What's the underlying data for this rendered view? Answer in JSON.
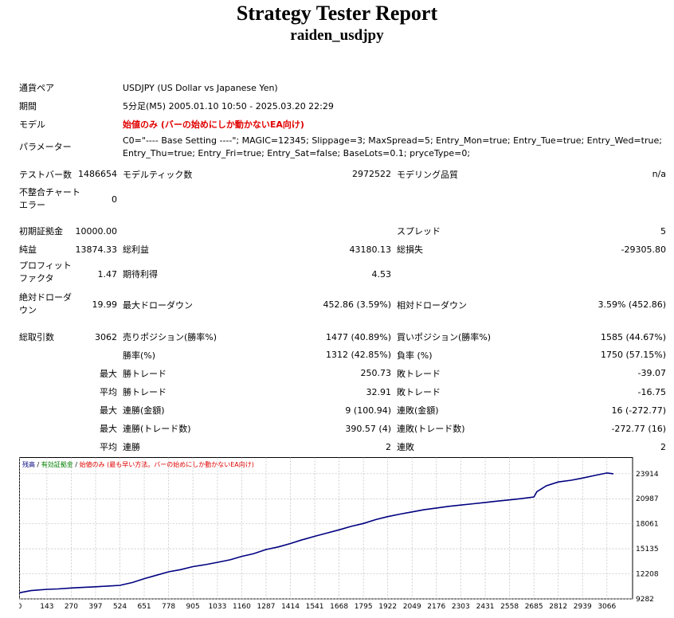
{
  "header": {
    "title": "Strategy Tester Report",
    "subtitle": "raiden_usdjpy"
  },
  "info": {
    "symbol_label": "通貨ペア",
    "symbol": "USDJPY (US Dollar vs Japanese Yen)",
    "period_label": "期間",
    "period": "5分足(M5) 2005.01.10 10:50 - 2025.03.20 22:29",
    "model_label": "モデル",
    "model": "始値のみ (バーの始めにしか動かないEA向け)",
    "params_label": "パラメーター",
    "params": "C0=\"---- Base Setting ----\"; MAGIC=12345; Slippage=3; MaxSpread=5; Entry_Mon=true; Entry_Tue=true; Entry_Wed=true; Entry_Thu=true; Entry_Fri=true; Entry_Sat=false; BaseLots=0.1; pryceType=0;"
  },
  "stats": {
    "bars_label": "テストバー数",
    "bars": "1486654",
    "ticks_label": "モデルティック数",
    "ticks": "2972522",
    "quality_label": "モデリング品質",
    "quality": "n/a",
    "mismatch_label": "不整合チャートエラー",
    "mismatch": "0",
    "deposit_label": "初期証拠金",
    "deposit": "10000.00",
    "spread_label": "スプレッド",
    "spread": "5",
    "net_label": "純益",
    "net": "13874.33",
    "gross_profit_label": "総利益",
    "gross_profit": "43180.13",
    "gross_loss_label": "総損失",
    "gross_loss": "-29305.80",
    "pf_label": "プロフィットファクタ",
    "pf": "1.47",
    "expected_label": "期待利得",
    "expected": "4.53",
    "abs_dd_label": "絶対ドローダウン",
    "abs_dd": "19.99",
    "max_dd_label": "最大ドローダウン",
    "max_dd": "452.86 (3.59%)",
    "rel_dd_label": "相対ドローダウン",
    "rel_dd": "3.59% (452.86)",
    "trades_label": "総取引数",
    "trades": "3062",
    "short_label": "売りポジション(勝率%)",
    "short": "1477 (40.89%)",
    "long_label": "買いポジション(勝率%)",
    "long": "1585 (44.67%)",
    "winpct_label": "勝率(%)",
    "winpct": "1312 (42.85%)",
    "losspct_label": "負率 (%)",
    "losspct": "1750 (57.15%)",
    "max_label": "最大",
    "avg_label": "平均",
    "win_trade_label": "勝トレード",
    "loss_trade_label": "敗トレード",
    "max_win": "250.73",
    "max_loss": "-39.07",
    "avg_win": "32.91",
    "avg_loss": "-16.75",
    "cons_win_amt_label": "連勝(金額)",
    "cons_win_amt": "9 (100.94)",
    "cons_loss_amt_label": "連敗(金額)",
    "cons_loss_amt": "16 (-272.77)",
    "cons_win_tr_label": "連勝(トレード数)",
    "cons_win_tr": "390.57 (4)",
    "cons_loss_tr_label": "連敗(トレード数)",
    "cons_loss_tr": "-272.77 (16)",
    "avg_cons_win_label": "連勝",
    "avg_cons_win": "2",
    "avg_cons_loss_label": "連敗",
    "avg_cons_loss": "2"
  },
  "chart_data": {
    "type": "line",
    "legend": [
      {
        "text": "残高",
        "color": "#000080"
      },
      {
        "text": " / ",
        "color": "#000000"
      },
      {
        "text": "有効証拠金",
        "color": "#008000"
      },
      {
        "text": " / ",
        "color": "#000000"
      },
      {
        "text": "始値のみ (最も早い方法。バーの始めにしか動かないEA向け)",
        "color": "#e00000"
      }
    ],
    "x_ticks": [
      0,
      143,
      270,
      397,
      524,
      651,
      778,
      905,
      1033,
      1160,
      1287,
      1414,
      1541,
      1668,
      1795,
      1922,
      2049,
      2176,
      2303,
      2431,
      2558,
      2685,
      2812,
      2939,
      3066
    ],
    "y_ticks": [
      23914,
      20987,
      18061,
      15135,
      12208,
      9282
    ],
    "xlim": [
      0,
      3200
    ],
    "ylim": [
      9282,
      24500
    ],
    "series": [
      {
        "color": "#000080",
        "x": [
          0,
          60,
          143,
          200,
          270,
          330,
          397,
          460,
          524,
          590,
          651,
          700,
          778,
          840,
          905,
          970,
          1033,
          1100,
          1160,
          1220,
          1287,
          1350,
          1414,
          1470,
          1541,
          1600,
          1668,
          1730,
          1795,
          1860,
          1922,
          1990,
          2049,
          2110,
          2176,
          2240,
          2303,
          2370,
          2431,
          2490,
          2558,
          2620,
          2685,
          2700,
          2750,
          2812,
          2880,
          2939,
          3000,
          3066,
          3100
        ],
        "y": [
          10000,
          10250,
          10400,
          10450,
          10560,
          10620,
          10700,
          10780,
          10860,
          11200,
          11650,
          11950,
          12450,
          12700,
          13050,
          13280,
          13550,
          13850,
          14250,
          14550,
          15050,
          15350,
          15750,
          16150,
          16600,
          16950,
          17350,
          17750,
          18100,
          18550,
          18900,
          19200,
          19450,
          19700,
          19900,
          20100,
          20250,
          20400,
          20550,
          20700,
          20850,
          21000,
          21200,
          21800,
          22500,
          22950,
          23150,
          23400,
          23700,
          24000,
          23900
        ]
      }
    ]
  }
}
